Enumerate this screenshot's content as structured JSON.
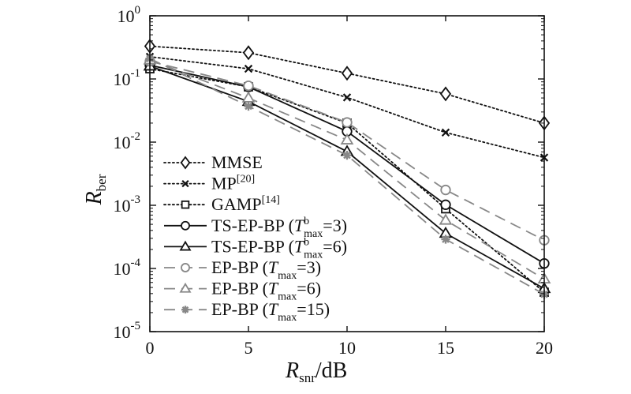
{
  "chart_data": {
    "type": "line",
    "xlabel": "R",
    "xlabel_sub": "snr",
    "xlabel_suffix": "/dB",
    "ylabel": "R",
    "ylabel_sub": "ber",
    "xlim": [
      0,
      20
    ],
    "ylim": [
      1e-05,
      1
    ],
    "yscale": "log",
    "grid": false,
    "legend_position": "bottom-left",
    "x_ticks": [
      0,
      5,
      10,
      15,
      20
    ],
    "y_ticks": [
      {
        "base": "10",
        "exp": "0"
      },
      {
        "base": "10",
        "exp": "-1"
      },
      {
        "base": "10",
        "exp": "-2"
      },
      {
        "base": "10",
        "exp": "-3"
      },
      {
        "base": "10",
        "exp": "-4"
      },
      {
        "base": "10",
        "exp": "-5"
      }
    ],
    "x": [
      0,
      5,
      10,
      15,
      20
    ],
    "series": [
      {
        "name": "MMSE",
        "marker": "diamond",
        "line": "dotted",
        "color": "#111111",
        "values": [
          0.33,
          0.26,
          0.123,
          0.058,
          0.02
        ]
      },
      {
        "name": "MP",
        "sup": "[20]",
        "marker": "x",
        "line": "dotted",
        "color": "#111111",
        "values": [
          0.225,
          0.145,
          0.051,
          0.0142,
          0.0057
        ]
      },
      {
        "name": "GAMP",
        "sup": "[14]",
        "marker": "square",
        "line": "dotted",
        "color": "#111111",
        "values": [
          0.145,
          0.075,
          0.02,
          0.00088,
          4.2e-05
        ]
      },
      {
        "name": "TS-EP-BP (",
        "italic": "T",
        "isup": "b",
        "isub": "max",
        "tail": "=3)",
        "marker": "circle",
        "line": "solid",
        "color": "#111111",
        "values": [
          0.165,
          0.075,
          0.0148,
          0.00102,
          0.00012
        ]
      },
      {
        "name": "TS-EP-BP (",
        "italic": "T",
        "isup": "b",
        "isub": "max",
        "tail": "=6)",
        "marker": "triangle",
        "line": "solid",
        "color": "#111111",
        "values": [
          0.16,
          0.044,
          0.0071,
          0.00036,
          4.8e-05
        ]
      },
      {
        "name": "EP-BP (",
        "italic": "T",
        "isub": "max",
        "tail": "=3)",
        "marker": "circle",
        "line": "dashed",
        "color": "#888888",
        "values": [
          0.19,
          0.078,
          0.0205,
          0.00175,
          0.00028
        ]
      },
      {
        "name": "EP-BP (",
        "italic": "T",
        "isub": "max",
        "tail": "=6)",
        "marker": "triangle",
        "line": "dashed",
        "color": "#888888",
        "values": [
          0.2,
          0.05,
          0.0108,
          0.00058,
          6.8e-05
        ]
      },
      {
        "name": "EP-BP (",
        "italic": "T",
        "isub": "max",
        "tail": "=15)",
        "marker": "star",
        "line": "dashed",
        "color": "#888888",
        "values": [
          0.21,
          0.037,
          0.0062,
          0.00029,
          3.9e-05
        ]
      }
    ]
  }
}
